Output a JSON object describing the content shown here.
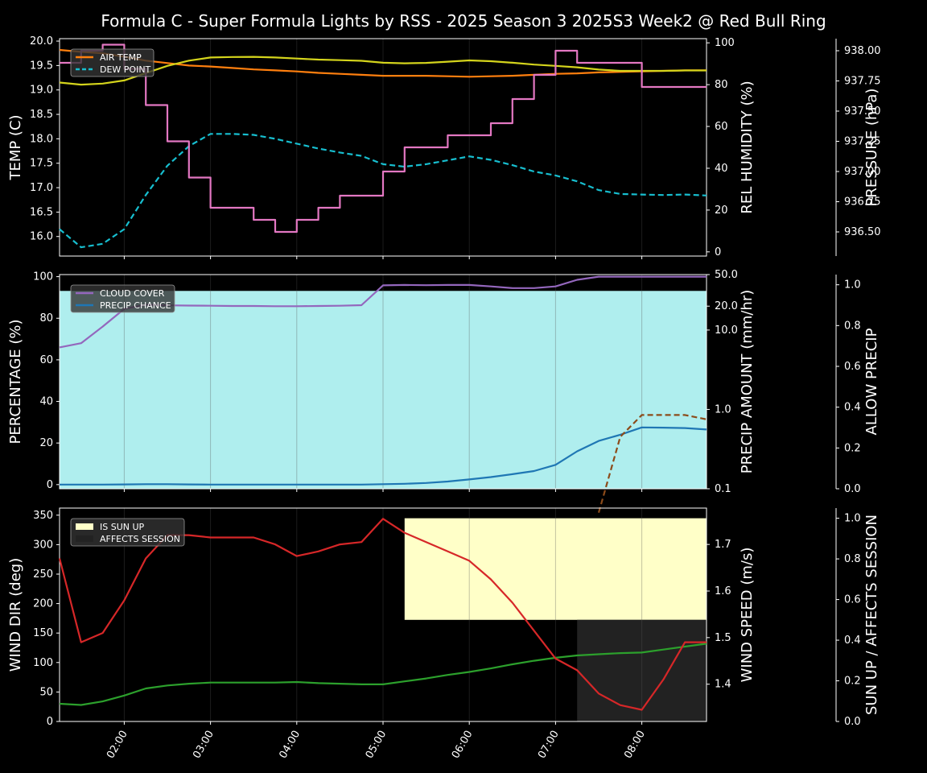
{
  "title": "Formula C - Super Formula Lights by RSS - 2025 Season 3 2025S3 Week2 @ Red Bull Ring",
  "colors": {
    "background": "#000000",
    "air_temp": "#ff7f0e",
    "dew_point": "#17becf",
    "humidity": "#d4d41c",
    "pressure": "#e377c2",
    "cloud": "#9467bd",
    "precip_chance": "#1f77b4",
    "precip_amount": "#8c4b1a",
    "allow_precip_fill": "#afeeee",
    "wind_dir": "#2ca02c",
    "wind_speed": "#d62728",
    "sun_up": "#ffffc8",
    "affects_session": "#222222"
  },
  "chart_data": [
    {
      "type": "line",
      "panel": "temperature",
      "x": [
        "01:15",
        "01:30",
        "01:45",
        "02:00",
        "02:15",
        "02:30",
        "02:45",
        "03:00",
        "03:15",
        "03:30",
        "03:45",
        "04:00",
        "04:15",
        "04:30",
        "04:45",
        "05:00",
        "05:15",
        "05:30",
        "05:45",
        "06:00",
        "06:15",
        "06:30",
        "06:45",
        "07:00",
        "07:15",
        "07:30",
        "07:45",
        "08:00",
        "08:15",
        "08:30",
        "08:45"
      ],
      "x_ticks": [
        "02:00",
        "03:00",
        "04:00",
        "05:00",
        "06:00",
        "07:00",
        "08:00"
      ],
      "legend": [
        "AIR TEMP",
        "DEW POINT"
      ],
      "legend_position": "upper-left",
      "axes": {
        "left": {
          "label": "TEMP (C)",
          "ylim": [
            15.6,
            20.05
          ],
          "ticks": [
            "16.0",
            "16.5",
            "17.0",
            "17.5",
            "18.0",
            "18.5",
            "19.0",
            "19.5",
            "20.0"
          ]
        },
        "right1": {
          "label": "REL HUMIDITY (%)",
          "ylim": [
            -2,
            102
          ],
          "ticks": [
            "0",
            "20",
            "40",
            "60",
            "80",
            "100"
          ]
        },
        "right2": {
          "label": "PRESSURE (hPa)",
          "ylim": [
            936.3,
            938.1
          ],
          "ticks": [
            "936.50",
            "936.75",
            "937.00",
            "937.25",
            "937.50",
            "937.75",
            "938.00"
          ]
        }
      },
      "series": [
        {
          "name": "AIR TEMP",
          "axis": "left",
          "color_key": "air_temp",
          "dashed": false,
          "values": [
            19.82,
            19.78,
            19.75,
            19.68,
            19.6,
            19.55,
            19.5,
            19.48,
            19.45,
            19.42,
            19.4,
            19.38,
            19.35,
            19.33,
            19.31,
            19.29,
            19.29,
            19.29,
            19.28,
            19.27,
            19.28,
            19.29,
            19.31,
            19.33,
            19.34,
            19.36,
            19.37,
            19.38,
            19.39,
            19.4,
            19.4
          ]
        },
        {
          "name": "DEW POINT",
          "axis": "left",
          "color_key": "dew_point",
          "dashed": true,
          "values": [
            16.15,
            15.78,
            15.85,
            16.15,
            16.85,
            17.45,
            17.85,
            18.1,
            18.1,
            18.08,
            18.0,
            17.9,
            17.8,
            17.72,
            17.65,
            17.48,
            17.43,
            17.48,
            17.56,
            17.64,
            17.57,
            17.46,
            17.33,
            17.25,
            17.13,
            16.95,
            16.87,
            16.86,
            16.85,
            16.86,
            16.84
          ]
        },
        {
          "values": [
            81,
            80,
            80.5,
            82,
            85.5,
            89,
            91.5,
            93,
            93.2,
            93.3,
            93,
            92.5,
            92,
            91.7,
            91.4,
            90.5,
            90.2,
            90.4,
            91,
            91.6,
            91.2,
            90.5,
            89.6,
            89,
            88.3,
            87.2,
            86.6,
            86.6,
            86.6,
            86.8,
            86.8
          ],
          "axis": "right1",
          "color_key": "humidity",
          "dashed": false
        },
        {
          "values": [
            937.9,
            938.0,
            938.05,
            937.85,
            937.55,
            937.25,
            936.95,
            936.7,
            936.7,
            936.6,
            936.5,
            936.6,
            936.7,
            936.8,
            936.8,
            937.0,
            937.2,
            937.2,
            937.3,
            937.3,
            937.4,
            937.6,
            937.8,
            938.0,
            937.9,
            937.9,
            937.9,
            937.7,
            937.7,
            937.7,
            937.7
          ],
          "axis": "right2",
          "color_key": "pressure",
          "dashed": false,
          "step": true
        }
      ]
    },
    {
      "type": "line",
      "panel": "precipitation",
      "legend": [
        "CLOUD COVER",
        "PRECIP CHANCE"
      ],
      "legend_position": "upper-left",
      "axes": {
        "left": {
          "label": "PERCENTAGE (%)",
          "ylim": [
            -2,
            101
          ],
          "ticks": [
            "0",
            "20",
            "40",
            "60",
            "80",
            "100"
          ]
        },
        "right1": {
          "label": "PRECIP AMOUNT (mm/hr)",
          "scale": "log",
          "ylim": [
            0.1,
            50
          ],
          "ticks": [
            "0.1",
            "1.0",
            "10.0",
            "20.0",
            "50.0"
          ]
        },
        "right2": {
          "label": "ALLOW PRECIP",
          "ylim": [
            0,
            1.05
          ],
          "ticks": [
            "0.0",
            "0.2",
            "0.4",
            "0.6",
            "0.8",
            "1.0"
          ]
        }
      },
      "allow_precip_value": 0.97,
      "series": [
        {
          "name": "CLOUD COVER",
          "axis": "left",
          "color_key": "cloud",
          "dashed": false,
          "values": [
            66,
            68,
            76,
            84.5,
            86.5,
            86.2,
            86.1,
            86,
            85.9,
            85.9,
            85.8,
            85.8,
            85.9,
            86,
            86.3,
            95.8,
            96,
            95.9,
            96,
            96,
            95.3,
            94.5,
            94.5,
            95.3,
            98.5,
            100,
            100,
            100,
            100,
            100,
            100
          ]
        },
        {
          "name": "PRECIP CHANCE",
          "axis": "left",
          "color_key": "precip_chance",
          "dashed": false,
          "values": [
            0,
            0,
            0,
            0.1,
            0.2,
            0.2,
            0.1,
            0,
            0,
            0,
            0,
            0,
            0,
            0,
            0,
            0.2,
            0.4,
            0.8,
            1.5,
            2.5,
            3.6,
            5,
            6.5,
            9.5,
            16,
            21,
            24,
            27.5,
            27.4,
            27.2,
            26.5
          ]
        },
        {
          "values": [
            null,
            null,
            null,
            null,
            null,
            null,
            null,
            null,
            null,
            null,
            null,
            null,
            null,
            null,
            null,
            null,
            null,
            null,
            null,
            null,
            null,
            null,
            null,
            null,
            null,
            0.05,
            0.45,
            0.85,
            0.85,
            0.85,
            0.75
          ],
          "axis": "right1",
          "color_key": "precip_amount",
          "dashed": true
        }
      ]
    },
    {
      "type": "line",
      "panel": "wind",
      "legend": [
        "IS SUN UP",
        "AFFECTS SESSION"
      ],
      "legend_position": "upper-left",
      "axes": {
        "left": {
          "label": "WIND DIR (deg)",
          "ylim": [
            0,
            362
          ],
          "ticks": [
            "0",
            "50",
            "100",
            "150",
            "200",
            "250",
            "300",
            "350"
          ]
        },
        "right1": {
          "label": "WIND SPEED (m/s)",
          "ylim": [
            1.32,
            1.778
          ],
          "ticks": [
            "1.4",
            "1.5",
            "1.6",
            "1.7"
          ]
        },
        "right2": {
          "label": "SUN UP / AFFECTS SESSION",
          "ylim": [
            0,
            1.05
          ],
          "ticks": [
            "0.0",
            "0.2",
            "0.4",
            "0.6",
            "0.8",
            "1.0"
          ]
        }
      },
      "sun_up": {
        "from": "05:15",
        "to": "08:45",
        "value": 1.0
      },
      "affects_session": {
        "from": "07:15",
        "to": "08:45",
        "value": 0.5
      },
      "series": [
        {
          "values": [
            30,
            28,
            34,
            44,
            56,
            61,
            64,
            66,
            66,
            66,
            66,
            67,
            65,
            64,
            63,
            63,
            68,
            73,
            79,
            84,
            90,
            97,
            103,
            108,
            112,
            114,
            116,
            117,
            122,
            127,
            132
          ],
          "axis": "left",
          "color_key": "wind_dir",
          "dashed": false
        },
        {
          "values": [
            1.67,
            1.49,
            1.51,
            1.58,
            1.67,
            1.72,
            1.72,
            1.715,
            1.715,
            1.715,
            1.7,
            1.675,
            1.685,
            1.7,
            1.705,
            1.755,
            1.725,
            1.705,
            1.685,
            1.665,
            1.625,
            1.575,
            1.515,
            1.455,
            1.43,
            1.38,
            1.355,
            1.345,
            1.41,
            1.49,
            1.49
          ],
          "axis": "right1",
          "color_key": "wind_speed",
          "dashed": false
        }
      ]
    }
  ]
}
